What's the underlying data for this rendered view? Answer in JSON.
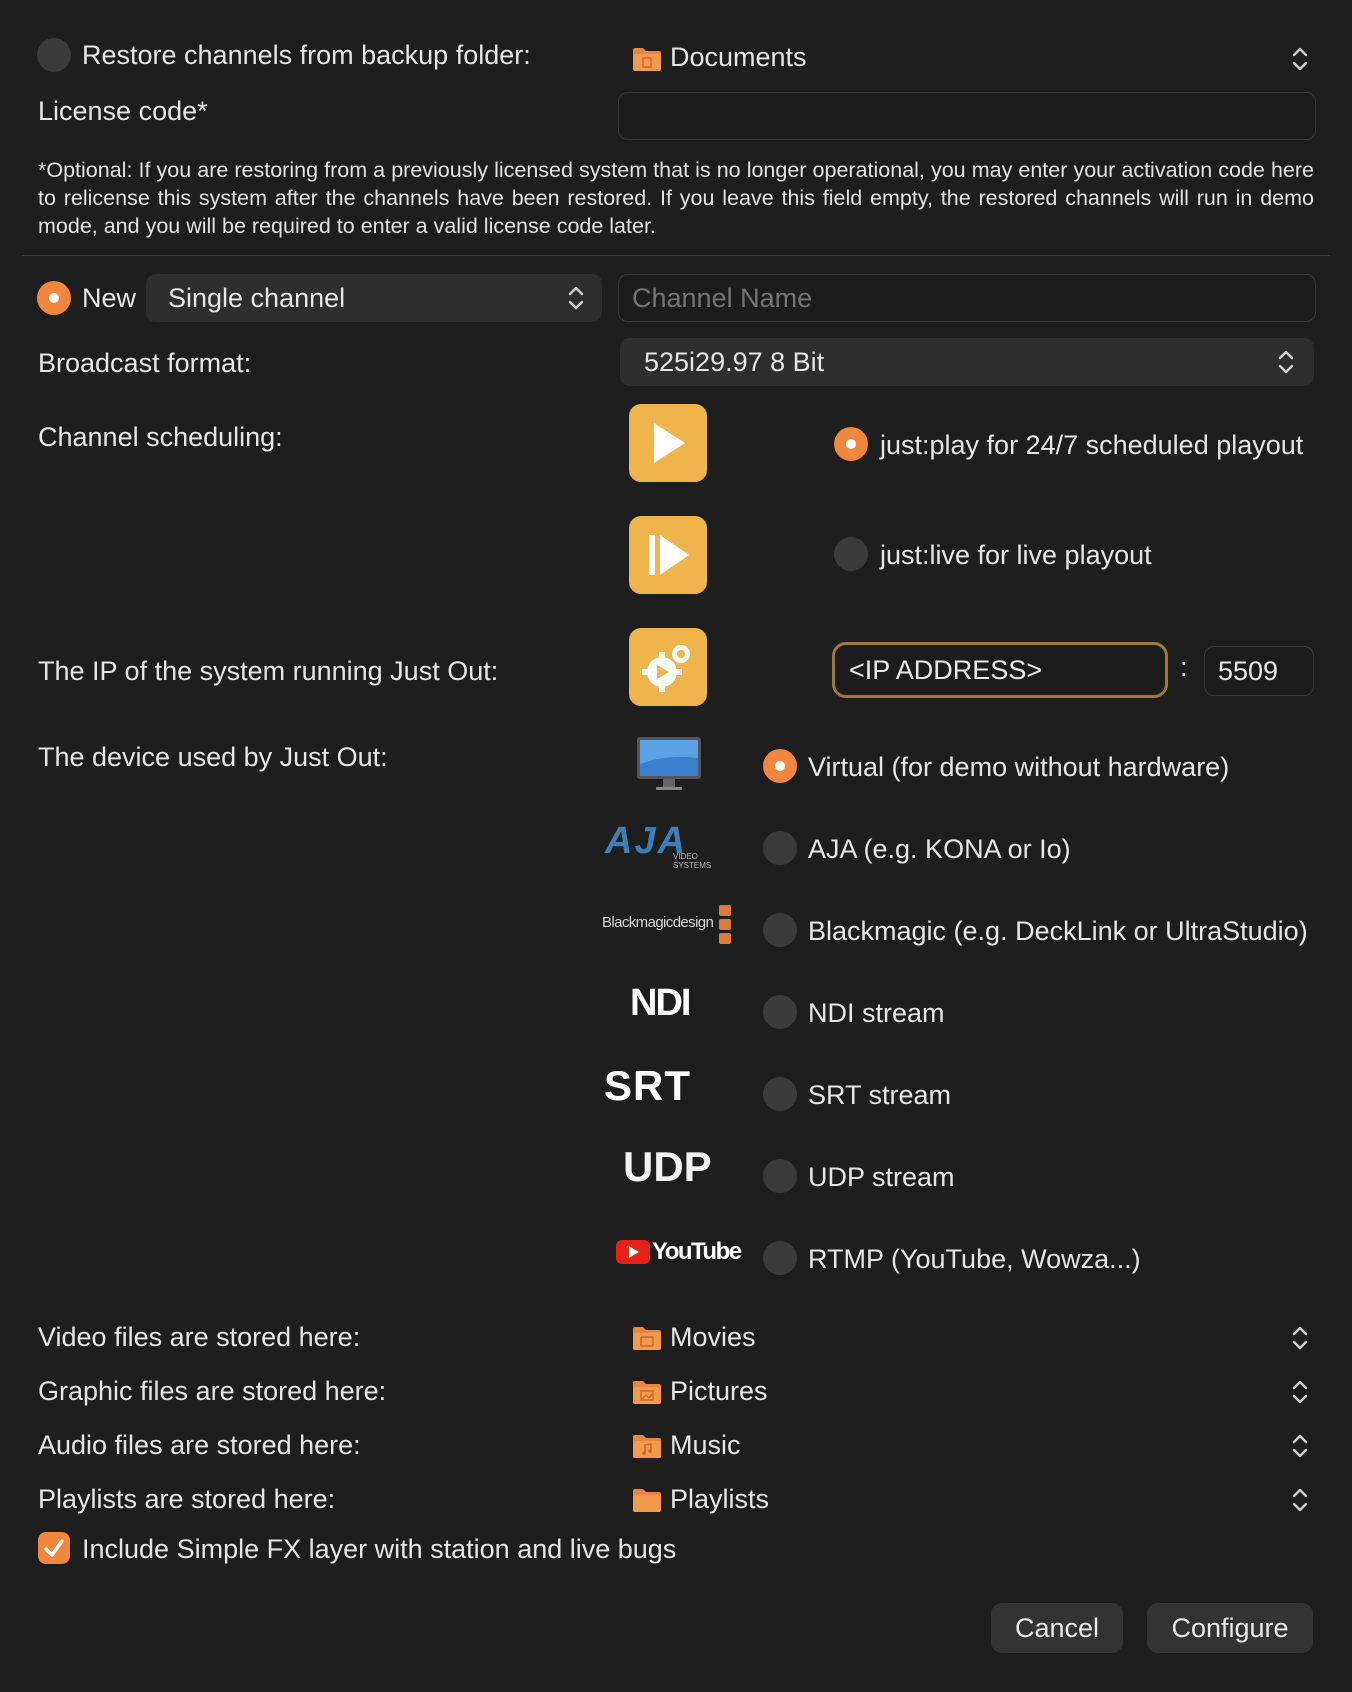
{
  "restore": {
    "label": "Restore channels from backup folder:",
    "selected": false,
    "folder": "Documents"
  },
  "license": {
    "label": "License code*",
    "value": "",
    "note": "*Optional: If you are restoring from a previously licensed system that is no longer operational, you may enter your activation code here to relicense this system after the channels have been restored. If you leave this field empty, the restored channels will run in demo mode, and you will be required to enter a valid license code later."
  },
  "new_channel": {
    "label": "New",
    "selected": true,
    "type": "Single channel",
    "name_placeholder": "Channel Name"
  },
  "broadcast_format": {
    "label": "Broadcast format:",
    "value": "525i29.97 8 Bit"
  },
  "scheduling": {
    "label": "Channel scheduling:",
    "options": [
      {
        "label": "just:play for 24/7 scheduled playout",
        "selected": true,
        "icon": "play-app-icon"
      },
      {
        "label": "just:live for live playout",
        "selected": false,
        "icon": "live-app-icon"
      }
    ]
  },
  "ip": {
    "label": "The IP of the system running Just Out:",
    "value": "<IP ADDRESS>",
    "separator": ":",
    "port": "5509",
    "icon": "just-out-gear-icon"
  },
  "device": {
    "label": "The device used by Just Out:",
    "options": [
      {
        "label": "Virtual (for demo without hardware)",
        "selected": true,
        "logo": "monitor-icon"
      },
      {
        "label": "AJA (e.g. KONA or Io)",
        "selected": false,
        "logo": "AJA",
        "sublogo": "VIDEO SYSTEMS"
      },
      {
        "label": "Blackmagic (e.g. DeckLink or UltraStudio)",
        "selected": false,
        "logo": "Blackmagicdesign"
      },
      {
        "label": "NDI stream",
        "selected": false,
        "logo": "NDI"
      },
      {
        "label": "SRT stream",
        "selected": false,
        "logo": "SRT"
      },
      {
        "label": "UDP stream",
        "selected": false,
        "logo": "UDP"
      },
      {
        "label": "RTMP (YouTube, Wowza...)",
        "selected": false,
        "logo": "YouTube"
      }
    ]
  },
  "storage": [
    {
      "label": "Video files are stored here:",
      "folder": "Movies"
    },
    {
      "label": "Graphic files are stored here:",
      "folder": "Pictures"
    },
    {
      "label": "Audio files are stored here:",
      "folder": "Music"
    },
    {
      "label": "Playlists are stored here:",
      "folder": "Playlists"
    }
  ],
  "simple_fx": {
    "label": "Include Simple FX layer with station and live bugs",
    "checked": true
  },
  "buttons": {
    "cancel": "Cancel",
    "configure": "Configure"
  },
  "colors": {
    "accent": "#f0873c",
    "app_icon": "#f0b44c",
    "background": "#1e1e1e"
  }
}
